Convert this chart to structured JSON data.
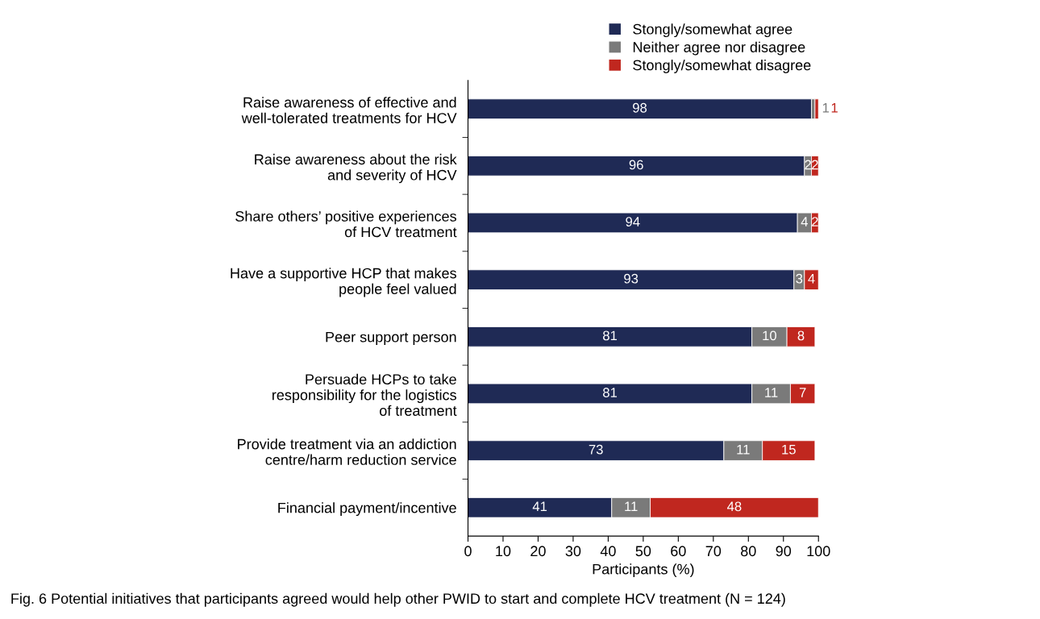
{
  "chart_data": {
    "type": "bar",
    "orientation": "horizontal",
    "stacked": true,
    "categories": [
      "Raise awareness of effective and\nwell-tolerated treatments for HCV",
      "Raise awareness about the risk\nand severity of HCV",
      "Share others’ positive experiences\nof HCV treatment",
      "Have a supportive HCP that makes\npeople feel valued",
      "Peer support person",
      "Persuade HCPs to take\nresponsibility for the logistics\nof treatment",
      "Provide treatment via an addiction\ncentre/harm reduction service",
      "Financial payment/incentive"
    ],
    "series": [
      {
        "name": "Stongly/somewhat agree",
        "color": "#1f2a55",
        "values": [
          98,
          96,
          94,
          93,
          81,
          81,
          73,
          41
        ]
      },
      {
        "name": "Neither agree nor disagree",
        "color": "#7a7a7a",
        "values": [
          1,
          2,
          4,
          3,
          10,
          11,
          11,
          11
        ]
      },
      {
        "name": "Stongly/somewhat disagree",
        "color": "#c0271f",
        "values": [
          1,
          2,
          2,
          4,
          8,
          7,
          15,
          48
        ]
      }
    ],
    "data_labels": true,
    "xlabel": "Participants (%)",
    "xlim": [
      0,
      100
    ],
    "xticks": [
      0,
      10,
      20,
      30,
      40,
      50,
      60,
      70,
      80,
      90,
      100
    ],
    "grid": false,
    "legend": "top right",
    "annotations": [
      "Fig. 6 Potential initiatives that participants agreed would help other PWID to start and complete HCV treatment (N = 124)"
    ]
  }
}
